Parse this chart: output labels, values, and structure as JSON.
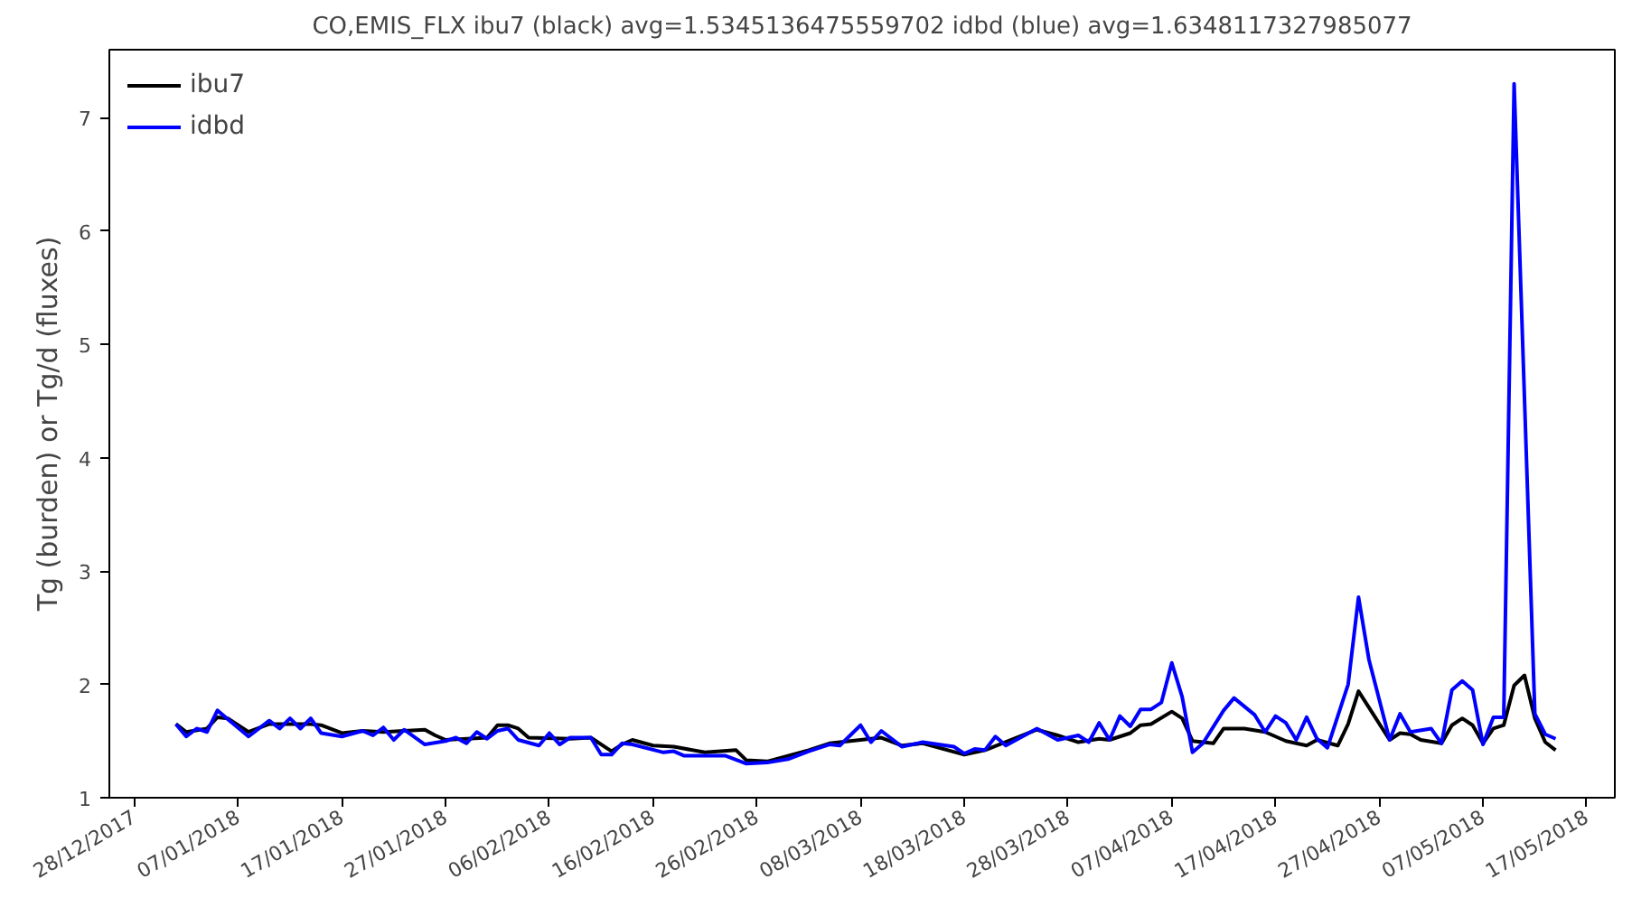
{
  "chart_data": {
    "type": "line",
    "title": "CO,EMIS_FLX ibu7 (black) avg=1.5345136475559702 idbd (blue) avg=1.6348117327985077",
    "ylabel": "Tg (burden) or Tg/d (fluxes)",
    "xlim": [
      "2017-12-25T14:00",
      "2018-05-19T17:00"
    ],
    "ylim": [
      1,
      7.6
    ],
    "xticks": [
      {
        "value": "2017-12-28",
        "label": "28/12/2017"
      },
      {
        "value": "2018-01-07",
        "label": "07/01/2018"
      },
      {
        "value": "2018-01-17",
        "label": "17/01/2018"
      },
      {
        "value": "2018-01-27",
        "label": "27/01/2018"
      },
      {
        "value": "2018-02-06",
        "label": "06/02/2018"
      },
      {
        "value": "2018-02-16",
        "label": "16/02/2018"
      },
      {
        "value": "2018-02-26",
        "label": "26/02/2018"
      },
      {
        "value": "2018-03-08",
        "label": "08/03/2018"
      },
      {
        "value": "2018-03-18",
        "label": "18/03/2018"
      },
      {
        "value": "2018-03-28",
        "label": "28/03/2018"
      },
      {
        "value": "2018-04-07",
        "label": "07/04/2018"
      },
      {
        "value": "2018-04-17",
        "label": "17/04/2018"
      },
      {
        "value": "2018-04-27",
        "label": "27/04/2018"
      },
      {
        "value": "2018-05-07",
        "label": "07/05/2018"
      },
      {
        "value": "2018-05-17",
        "label": "17/05/2018"
      }
    ],
    "yticks": [
      1,
      2,
      3,
      4,
      5,
      6,
      7
    ],
    "grid": false,
    "legend": "top left",
    "line_style": "solid",
    "marker": "none",
    "series": [
      {
        "name": "ibu7",
        "color": "#000000",
        "x": [
          "2018-01-01",
          "2018-01-02",
          "2018-01-04",
          "2018-01-05",
          "2018-01-06",
          "2018-01-08",
          "2018-01-10",
          "2018-01-14",
          "2018-01-15",
          "2018-01-17",
          "2018-01-19",
          "2018-01-21",
          "2018-01-25",
          "2018-01-26",
          "2018-01-27",
          "2018-01-31",
          "2018-02-01",
          "2018-02-02",
          "2018-02-03",
          "2018-02-04",
          "2018-02-08",
          "2018-02-10",
          "2018-02-12",
          "2018-02-13",
          "2018-02-14",
          "2018-02-16",
          "2018-02-18",
          "2018-02-21",
          "2018-02-24",
          "2018-02-25",
          "2018-02-27",
          "2018-03-01",
          "2018-03-03",
          "2018-03-05",
          "2018-03-09",
          "2018-03-10",
          "2018-03-12",
          "2018-03-14",
          "2018-03-18",
          "2018-03-20",
          "2018-03-25",
          "2018-03-27",
          "2018-03-29",
          "2018-03-31",
          "2018-04-01",
          "2018-04-03",
          "2018-04-04",
          "2018-04-05",
          "2018-04-07",
          "2018-04-08",
          "2018-04-09",
          "2018-04-11",
          "2018-04-12",
          "2018-04-14",
          "2018-04-16",
          "2018-04-18",
          "2018-04-20",
          "2018-04-21",
          "2018-04-23",
          "2018-04-24",
          "2018-04-25",
          "2018-04-28",
          "2018-04-29",
          "2018-04-30",
          "2018-05-01",
          "2018-05-03",
          "2018-05-04",
          "2018-05-05",
          "2018-05-06",
          "2018-05-07",
          "2018-05-08",
          "2018-05-09",
          "2018-05-10",
          "2018-05-11",
          "2018-05-12",
          "2018-05-13",
          "2018-05-14"
        ],
        "values": [
          1.65,
          1.58,
          1.61,
          1.71,
          1.7,
          1.58,
          1.65,
          1.65,
          1.64,
          1.57,
          1.59,
          1.58,
          1.6,
          1.55,
          1.51,
          1.53,
          1.64,
          1.64,
          1.61,
          1.53,
          1.52,
          1.53,
          1.41,
          1.47,
          1.51,
          1.46,
          1.45,
          1.4,
          1.42,
          1.33,
          1.32,
          1.37,
          1.42,
          1.48,
          1.52,
          1.53,
          1.46,
          1.48,
          1.38,
          1.42,
          1.6,
          1.55,
          1.49,
          1.52,
          1.51,
          1.57,
          1.64,
          1.65,
          1.76,
          1.7,
          1.5,
          1.48,
          1.61,
          1.61,
          1.58,
          1.5,
          1.46,
          1.51,
          1.46,
          1.65,
          1.94,
          1.51,
          1.57,
          1.56,
          1.51,
          1.48,
          1.64,
          1.7,
          1.64,
          1.48,
          1.61,
          1.64,
          1.99,
          2.08,
          1.7,
          1.49,
          1.42
        ]
      },
      {
        "name": "idbd",
        "color": "#0000ff",
        "x": [
          "2018-01-01",
          "2018-01-02",
          "2018-01-03",
          "2018-01-04",
          "2018-01-05",
          "2018-01-08",
          "2018-01-10",
          "2018-01-11",
          "2018-01-12",
          "2018-01-13",
          "2018-01-14",
          "2018-01-15",
          "2018-01-17",
          "2018-01-19",
          "2018-01-20",
          "2018-01-21",
          "2018-01-22",
          "2018-01-23",
          "2018-01-25",
          "2018-01-27",
          "2018-01-28",
          "2018-01-29",
          "2018-01-30",
          "2018-01-31",
          "2018-02-01",
          "2018-02-02",
          "2018-02-03",
          "2018-02-05",
          "2018-02-06",
          "2018-02-07",
          "2018-02-08",
          "2018-02-10",
          "2018-02-11",
          "2018-02-12",
          "2018-02-13",
          "2018-02-14",
          "2018-02-17",
          "2018-02-18",
          "2018-02-19",
          "2018-02-23",
          "2018-02-25",
          "2018-02-27",
          "2018-03-01",
          "2018-03-03",
          "2018-03-05",
          "2018-03-06",
          "2018-03-08",
          "2018-03-09",
          "2018-03-10",
          "2018-03-12",
          "2018-03-14",
          "2018-03-17",
          "2018-03-18",
          "2018-03-19",
          "2018-03-20",
          "2018-03-21",
          "2018-03-22",
          "2018-03-25",
          "2018-03-27",
          "2018-03-29",
          "2018-03-30",
          "2018-03-31",
          "2018-04-01",
          "2018-04-02",
          "2018-04-03",
          "2018-04-04",
          "2018-04-05",
          "2018-04-06",
          "2018-04-07",
          "2018-04-08",
          "2018-04-09",
          "2018-04-10",
          "2018-04-12",
          "2018-04-13",
          "2018-04-15",
          "2018-04-16",
          "2018-04-17",
          "2018-04-18",
          "2018-04-19",
          "2018-04-20",
          "2018-04-21",
          "2018-04-22",
          "2018-04-24",
          "2018-04-25",
          "2018-04-26",
          "2018-04-28",
          "2018-04-29",
          "2018-04-30",
          "2018-05-02",
          "2018-05-03",
          "2018-05-04",
          "2018-05-05",
          "2018-05-06",
          "2018-05-07",
          "2018-05-08",
          "2018-05-09",
          "2018-05-10",
          "2018-05-12",
          "2018-05-13",
          "2018-05-14"
        ],
        "values": [
          1.65,
          1.54,
          1.61,
          1.58,
          1.77,
          1.54,
          1.68,
          1.61,
          1.7,
          1.61,
          1.7,
          1.57,
          1.54,
          1.59,
          1.55,
          1.62,
          1.51,
          1.6,
          1.47,
          1.5,
          1.53,
          1.48,
          1.58,
          1.52,
          1.59,
          1.61,
          1.51,
          1.46,
          1.57,
          1.47,
          1.53,
          1.53,
          1.38,
          1.38,
          1.48,
          1.47,
          1.4,
          1.41,
          1.37,
          1.37,
          1.3,
          1.31,
          1.34,
          1.41,
          1.47,
          1.46,
          1.64,
          1.49,
          1.59,
          1.45,
          1.49,
          1.45,
          1.39,
          1.43,
          1.42,
          1.54,
          1.46,
          1.61,
          1.51,
          1.55,
          1.49,
          1.66,
          1.51,
          1.72,
          1.63,
          1.78,
          1.78,
          1.84,
          2.19,
          1.89,
          1.4,
          1.48,
          1.77,
          1.88,
          1.73,
          1.58,
          1.72,
          1.66,
          1.51,
          1.71,
          1.52,
          1.44,
          2.0,
          2.77,
          2.22,
          1.51,
          1.74,
          1.58,
          1.61,
          1.48,
          1.95,
          2.03,
          1.95,
          1.47,
          1.71,
          1.71,
          7.3,
          1.74,
          1.56,
          1.52
        ]
      }
    ]
  }
}
